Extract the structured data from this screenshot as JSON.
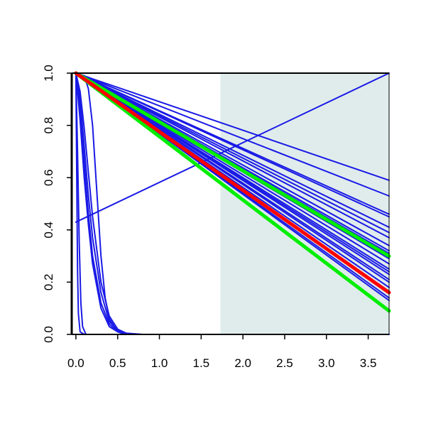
{
  "chart_data": {
    "type": "line",
    "title": "",
    "xlabel": "",
    "ylabel": "",
    "xlim": [
      -0.05,
      3.75
    ],
    "ylim": [
      0.0,
      1.0
    ],
    "x_ticks": [
      "0.0",
      "0.5",
      "1.0",
      "1.5",
      "2.0",
      "2.5",
      "3.0",
      "3.5"
    ],
    "y_ticks": [
      "0.0",
      "0.2",
      "0.4",
      "0.6",
      "0.8",
      "1.0"
    ],
    "shaded_region": {
      "x_from": 1.73,
      "x_to": 3.75,
      "color": "#e0ecec"
    },
    "colors": {
      "series": "#1a1ae6",
      "highlight": "#ff0000",
      "bound": "#00ee00",
      "axis": "#000000"
    },
    "grid": false,
    "legend": "none",
    "series": [
      {
        "color": "#1a1ae6",
        "x": [
          0,
          3.75
        ],
        "y": [
          1.0,
          0.59
        ]
      },
      {
        "color": "#1a1ae6",
        "x": [
          0,
          3.75
        ],
        "y": [
          1.0,
          0.53
        ]
      },
      {
        "color": "#1a1ae6",
        "x": [
          0,
          3.75
        ],
        "y": [
          1.0,
          0.46
        ]
      },
      {
        "color": "#1a1ae6",
        "x": [
          0,
          3.75
        ],
        "y": [
          1.0,
          0.45
        ]
      },
      {
        "color": "#1a1ae6",
        "x": [
          0,
          3.75
        ],
        "y": [
          1.0,
          0.41
        ]
      },
      {
        "color": "#1a1ae6",
        "x": [
          0,
          3.75
        ],
        "y": [
          1.0,
          0.39
        ]
      },
      {
        "color": "#1a1ae6",
        "x": [
          0,
          3.75
        ],
        "y": [
          1.0,
          0.37
        ]
      },
      {
        "color": "#1a1ae6",
        "x": [
          0,
          3.75
        ],
        "y": [
          1.0,
          0.34
        ]
      },
      {
        "color": "#1a1ae6",
        "x": [
          0,
          3.75
        ],
        "y": [
          1.0,
          0.32
        ]
      },
      {
        "color": "#1a1ae6",
        "x": [
          0,
          3.75
        ],
        "y": [
          1.0,
          0.31
        ]
      },
      {
        "color": "#1a1ae6",
        "x": [
          0,
          3.75
        ],
        "y": [
          1.0,
          0.29
        ]
      },
      {
        "color": "#1a1ae6",
        "x": [
          0,
          3.75
        ],
        "y": [
          1.0,
          0.27
        ]
      },
      {
        "color": "#1a1ae6",
        "x": [
          0,
          3.75
        ],
        "y": [
          1.0,
          0.25
        ]
      },
      {
        "color": "#1a1ae6",
        "x": [
          0,
          3.75
        ],
        "y": [
          1.0,
          0.24
        ]
      },
      {
        "color": "#1a1ae6",
        "x": [
          0,
          3.75
        ],
        "y": [
          1.0,
          0.23
        ]
      },
      {
        "color": "#1a1ae6",
        "x": [
          0,
          3.75
        ],
        "y": [
          1.0,
          0.21
        ]
      },
      {
        "color": "#1a1ae6",
        "x": [
          0,
          3.75
        ],
        "y": [
          1.0,
          0.2
        ]
      },
      {
        "color": "#1a1ae6",
        "x": [
          0,
          3.75
        ],
        "y": [
          1.0,
          0.18
        ]
      },
      {
        "color": "#1a1ae6",
        "x": [
          0,
          3.75
        ],
        "y": [
          1.0,
          0.16
        ]
      },
      {
        "color": "#1a1ae6",
        "x": [
          0,
          3.75
        ],
        "y": [
          1.0,
          0.14
        ]
      },
      {
        "color": "#1a1ae6",
        "x": [
          0,
          3.75
        ],
        "y": [
          1.0,
          0.13
        ]
      },
      {
        "color": "#1a1ae6",
        "x": [
          0,
          3.75
        ],
        "y": [
          0.43,
          1.0
        ]
      },
      {
        "color": "#1a1ae6",
        "x": [
          0,
          0.05,
          0.1,
          0.15,
          0.2,
          0.3,
          0.4,
          0.5,
          0.6,
          0.8,
          3.75
        ],
        "y": [
          1.0,
          0.82,
          0.6,
          0.42,
          0.27,
          0.1,
          0.03,
          0.01,
          0.0,
          0.0,
          0.0
        ]
      },
      {
        "color": "#1a1ae6",
        "x": [
          0,
          0.05,
          0.1,
          0.15,
          0.2,
          0.3,
          0.4,
          0.5,
          0.6,
          0.8,
          3.75
        ],
        "y": [
          1.0,
          0.9,
          0.72,
          0.53,
          0.37,
          0.16,
          0.05,
          0.015,
          0.0,
          0.0,
          0.0
        ]
      },
      {
        "color": "#1a1ae6",
        "x": [
          0,
          0.05,
          0.1,
          0.15,
          0.2,
          0.3,
          0.4,
          0.5,
          0.6,
          0.8,
          3.75
        ],
        "y": [
          1.0,
          0.87,
          0.66,
          0.46,
          0.3,
          0.12,
          0.04,
          0.01,
          0.0,
          0.0,
          0.0
        ]
      },
      {
        "color": "#1a1ae6",
        "x": [
          0,
          0.05,
          0.1,
          0.15,
          0.2,
          0.3,
          0.4,
          0.5,
          0.6,
          0.8,
          3.75
        ],
        "y": [
          1.0,
          0.93,
          0.79,
          0.62,
          0.45,
          0.2,
          0.07,
          0.02,
          0.005,
          0.0,
          0.0
        ]
      },
      {
        "color": "#1a1ae6",
        "x": [
          0,
          0.1,
          0.15,
          0.2,
          0.25,
          0.3,
          0.35,
          0.4,
          0.5,
          0.6,
          0.8,
          3.75
        ],
        "y": [
          1.0,
          0.99,
          0.94,
          0.8,
          0.55,
          0.3,
          0.14,
          0.06,
          0.01,
          0.0,
          0.0,
          0.0
        ]
      },
      {
        "color": "#1a1ae6",
        "x": [
          0,
          0.01,
          0.02,
          0.03,
          0.05,
          0.1,
          3.75
        ],
        "y": [
          1.0,
          0.6,
          0.25,
          0.08,
          0.01,
          0.0,
          0.0
        ]
      },
      {
        "color": "#1a1ae6",
        "x": [
          0,
          0.02,
          0.04,
          0.06,
          0.08,
          0.12,
          3.75
        ],
        "y": [
          1.0,
          0.7,
          0.35,
          0.12,
          0.03,
          0.0,
          0.0
        ]
      },
      {
        "color": "#00ee00",
        "emphasis": true,
        "x": [
          0,
          3.75
        ],
        "y": [
          1.0,
          0.3
        ]
      },
      {
        "color": "#00ee00",
        "emphasis": true,
        "x": [
          0,
          3.75
        ],
        "y": [
          1.0,
          0.09
        ]
      },
      {
        "color": "#ff0000",
        "emphasis": true,
        "x": [
          0,
          3.75
        ],
        "y": [
          1.0,
          0.16
        ]
      }
    ]
  }
}
